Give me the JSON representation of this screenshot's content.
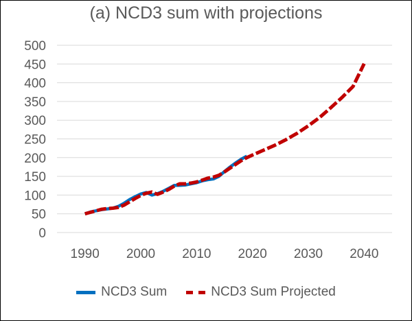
{
  "chart_data": {
    "type": "line",
    "title": "(a) NCD3 sum with projections",
    "xlabel": "",
    "ylabel": "",
    "xlim": [
      1985,
      2045
    ],
    "ylim": [
      0,
      500
    ],
    "x_ticks": [
      1990,
      2000,
      2010,
      2020,
      2030,
      2040
    ],
    "y_ticks": [
      0,
      50,
      100,
      150,
      200,
      250,
      300,
      350,
      400,
      450,
      500
    ],
    "grid": true,
    "legend_position": "bottom",
    "series": [
      {
        "name": "NCD3 Sum",
        "color": "#0070C0",
        "style": "solid",
        "points": [
          [
            1990,
            50
          ],
          [
            1991,
            55
          ],
          [
            1992,
            58
          ],
          [
            1993,
            61
          ],
          [
            1994,
            63
          ],
          [
            1995,
            65
          ],
          [
            1996,
            70
          ],
          [
            1997,
            78
          ],
          [
            1998,
            88
          ],
          [
            1999,
            96
          ],
          [
            2000,
            103
          ],
          [
            2001,
            107
          ],
          [
            2002,
            100
          ],
          [
            2003,
            104
          ],
          [
            2004,
            110
          ],
          [
            2005,
            118
          ],
          [
            2006,
            126
          ],
          [
            2007,
            126
          ],
          [
            2008,
            127
          ],
          [
            2009,
            130
          ],
          [
            2010,
            133
          ],
          [
            2011,
            138
          ],
          [
            2012,
            141
          ],
          [
            2013,
            143
          ],
          [
            2014,
            150
          ],
          [
            2015,
            163
          ],
          [
            2016,
            175
          ],
          [
            2017,
            186
          ],
          [
            2018,
            196
          ],
          [
            2019,
            204
          ]
        ]
      },
      {
        "name": "NCD3 Sum Projected",
        "color": "#C00000",
        "style": "dashed",
        "points": [
          [
            1990,
            50
          ],
          [
            1991,
            54
          ],
          [
            1992,
            58
          ],
          [
            1993,
            62
          ],
          [
            1994,
            64
          ],
          [
            1995,
            65
          ],
          [
            1996,
            67
          ],
          [
            1997,
            73
          ],
          [
            1998,
            82
          ],
          [
            1999,
            91
          ],
          [
            2000,
            99
          ],
          [
            2001,
            105
          ],
          [
            2002,
            108
          ],
          [
            2003,
            102
          ],
          [
            2004,
            108
          ],
          [
            2005,
            115
          ],
          [
            2006,
            124
          ],
          [
            2007,
            130
          ],
          [
            2008,
            130
          ],
          [
            2009,
            132
          ],
          [
            2010,
            135
          ],
          [
            2011,
            140
          ],
          [
            2012,
            145
          ],
          [
            2013,
            148
          ],
          [
            2014,
            153
          ],
          [
            2015,
            162
          ],
          [
            2016,
            172
          ],
          [
            2017,
            182
          ],
          [
            2018,
            192
          ],
          [
            2019,
            200
          ],
          [
            2020,
            207
          ],
          [
            2022,
            220
          ],
          [
            2024,
            233
          ],
          [
            2026,
            248
          ],
          [
            2028,
            265
          ],
          [
            2030,
            285
          ],
          [
            2032,
            307
          ],
          [
            2034,
            333
          ],
          [
            2036,
            360
          ],
          [
            2038,
            390
          ],
          [
            2040,
            451
          ]
        ]
      }
    ]
  }
}
